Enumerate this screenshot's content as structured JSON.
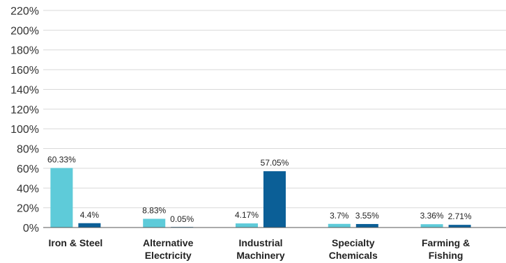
{
  "chart_data": {
    "type": "bar",
    "categories": [
      [
        "Iron & Steel"
      ],
      [
        "Alternative",
        "Electricity"
      ],
      [
        "Industrial",
        "Machinery"
      ],
      [
        "Specialty",
        "Chemicals"
      ],
      [
        "Farming &",
        "Fishing"
      ]
    ],
    "series": [
      {
        "values": [
          60.33,
          8.83,
          4.17,
          3.7,
          3.36
        ],
        "labels": [
          "60.33%",
          "8.83%",
          "4.17%",
          "3.7%",
          "3.36%"
        ],
        "color": "#5ecbd9"
      },
      {
        "values": [
          4.4,
          0.05,
          57.05,
          3.55,
          2.71
        ],
        "labels": [
          "4.4%",
          "0.05%",
          "57.05%",
          "3.55%",
          "2.71%"
        ],
        "color": "#0b5f97"
      }
    ],
    "yticks": [
      "0%",
      "20%",
      "40%",
      "60%",
      "80%",
      "100%",
      "120%",
      "140%",
      "160%",
      "180%",
      "200%",
      "220%"
    ],
    "ylim": [
      0,
      220
    ],
    "grid": true,
    "legend": "none"
  }
}
